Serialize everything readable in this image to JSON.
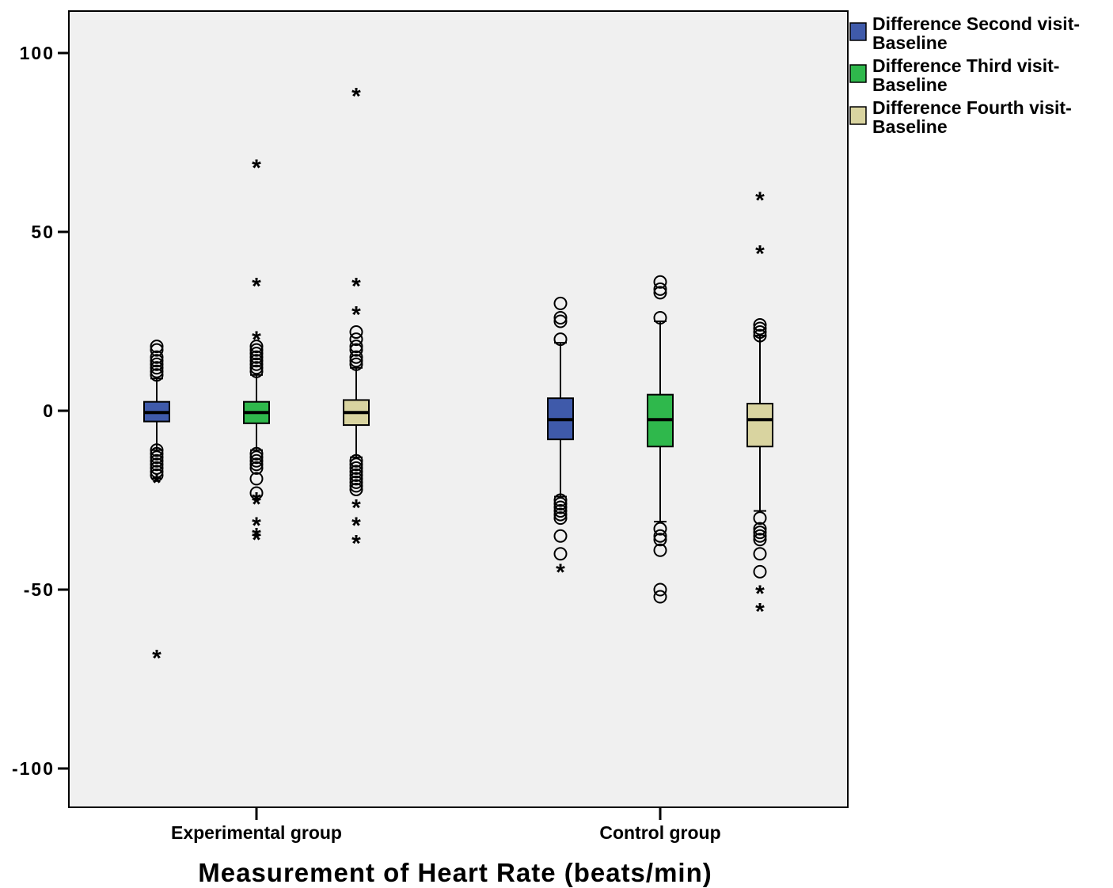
{
  "chart_data": {
    "type": "boxplot",
    "xlabel": "Measurement of Heart Rate (beats/min)",
    "ylabel": "",
    "ylim": [
      -111,
      112
    ],
    "yticks": [
      100,
      50,
      0,
      -50,
      -100
    ],
    "ytick_labels": [
      "100",
      "50",
      "0",
      "-50",
      "-100"
    ],
    "grid": false,
    "legend_position": "outside-right-top",
    "plot_background": "#f0f0f0",
    "categories": [
      "Experimental group",
      "Control group"
    ],
    "series": [
      {
        "name": "Difference Second visit-Baseline",
        "color": "#3f5aaa",
        "boxes": [
          {
            "q1": -3,
            "median": -0.5,
            "q3": 2.5,
            "whisker_low": -11,
            "whisker_high": 9,
            "outliers": [
              18,
              17,
              15,
              14,
              13,
              12,
              11,
              10,
              -11,
              -12,
              -13,
              -14,
              -15,
              -16,
              -17,
              -18
            ],
            "extremes": [
              -19,
              -68
            ]
          },
          {
            "q1": -8,
            "median": -2.5,
            "q3": 3.5,
            "whisker_low": -24,
            "whisker_high": 19,
            "outliers": [
              30,
              26,
              25,
              20,
              -25,
              -26,
              -27,
              -28,
              -29,
              -30,
              -35,
              -40
            ],
            "extremes": [
              -44
            ]
          }
        ]
      },
      {
        "name": "Difference Third visit-Baseline",
        "color": "#2fb84c",
        "boxes": [
          {
            "q1": -3.5,
            "median": -0.5,
            "q3": 2.5,
            "whisker_low": -11,
            "whisker_high": 10,
            "outliers": [
              18,
              17,
              16,
              15,
              14,
              13,
              12,
              11,
              -12,
              -13,
              -14,
              -15,
              -16,
              -19,
              -23
            ],
            "extremes": [
              69,
              36,
              21,
              -24,
              -25,
              -31,
              -34,
              -35
            ]
          },
          {
            "q1": -10,
            "median": -2.5,
            "q3": 4.5,
            "whisker_low": -31,
            "whisker_high": 25,
            "outliers": [
              36,
              34,
              33,
              26,
              -33,
              -35,
              -36,
              -39,
              -50,
              -52
            ],
            "extremes": []
          }
        ]
      },
      {
        "name": "Difference Fourth visit-Baseline",
        "color": "#d9d4a0",
        "boxes": [
          {
            "q1": -4,
            "median": -0.5,
            "q3": 3,
            "whisker_low": -13,
            "whisker_high": 12,
            "outliers": [
              22,
              20,
              18,
              17,
              15,
              14,
              13,
              -14,
              -15,
              -16,
              -17,
              -18,
              -19,
              -20,
              -21,
              -22
            ],
            "extremes": [
              89,
              36,
              28,
              -26,
              -31,
              -36
            ]
          },
          {
            "q1": -10,
            "median": -2.5,
            "q3": 2,
            "whisker_low": -28,
            "whisker_high": 21,
            "outliers": [
              24,
              23,
              22,
              21,
              -30,
              -33,
              -34,
              -35,
              -36,
              -40,
              -45
            ],
            "extremes": [
              60,
              45,
              -50,
              -55
            ]
          }
        ]
      }
    ]
  }
}
